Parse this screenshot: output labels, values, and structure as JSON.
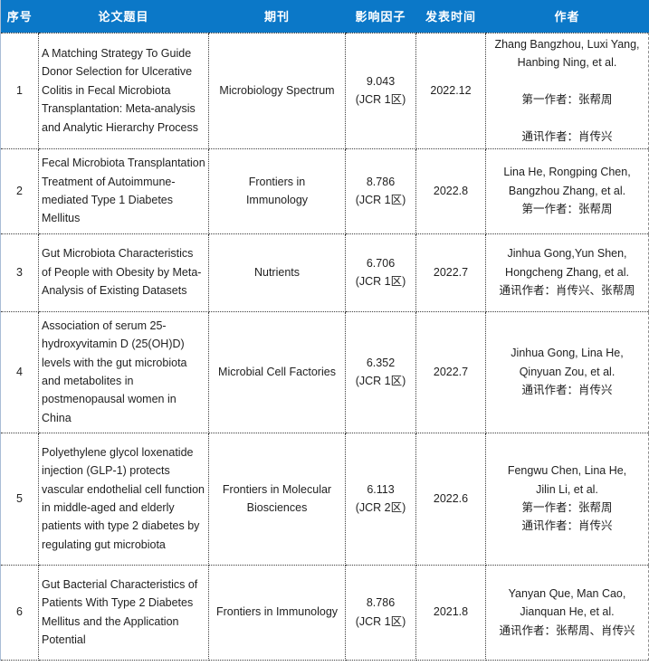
{
  "table": {
    "header_bg": "#0b78c8",
    "header_text_color": "#ffffff",
    "columns": [
      {
        "key": "index",
        "label": "序号"
      },
      {
        "key": "title",
        "label": "论文题目"
      },
      {
        "key": "journal",
        "label": "期刊"
      },
      {
        "key": "impact_factor",
        "label": "影响因子"
      },
      {
        "key": "publish_date",
        "label": "发表时间"
      },
      {
        "key": "authors",
        "label": "作者"
      }
    ],
    "rows": [
      {
        "index": "1",
        "title": "A Matching Strategy To Guide Donor Selection for Ulcerative Colitis in Fecal Microbiota Transplantation: Meta-analysis and Analytic Hierarchy Process",
        "journal": "Microbiology Spectrum",
        "impact_factor": "9.043\n(JCR 1区)",
        "publish_date": "2022.12",
        "authors": "Zhang Bangzhou, Luxi Yang,\nHanbing Ning, et al.\n\n第一作者：张帮周\n\n通讯作者：肖传兴"
      },
      {
        "index": "2",
        "title": "Fecal Microbiota Transplantation Treatment of Autoimmune-mediated Type 1 Diabetes Mellitus",
        "journal": "Frontiers in\nImmunology",
        "impact_factor": "8.786\n(JCR 1区)",
        "publish_date": "2022.8",
        "authors": "Lina He, Rongping Chen,\nBangzhou Zhang, et al.\n第一作者：张帮周"
      },
      {
        "index": "3",
        "title": "Gut Microbiota Characteristics of People with Obesity by Meta-Analysis of Existing Datasets",
        "journal": "Nutrients",
        "impact_factor": "6.706\n(JCR 1区)",
        "publish_date": "2022.7",
        "authors": "Jinhua Gong,Yun Shen,\nHongcheng Zhang, et al.\n通讯作者：肖传兴、张帮周"
      },
      {
        "index": "4",
        "title": "Association of serum 25-hydroxyvitamin D (25(OH)D) levels with the gut microbiota and metabolites in postmenopausal women in China",
        "journal": "Microbial Cell Factories",
        "impact_factor": "6.352\n(JCR 1区)",
        "publish_date": "2022.7",
        "authors": "Jinhua Gong, Lina He,\nQinyuan Zou, et al.\n通讯作者：肖传兴"
      },
      {
        "index": "5",
        "title": "Polyethylene glycol loxenatide injection (GLP-1) protects vascular endothelial cell function in middle-aged and elderly patients with type 2 diabetes by regulating gut microbiota",
        "journal": "Frontiers in Molecular\nBiosciences",
        "impact_factor": "6.113\n(JCR 2区)",
        "publish_date": "2022.6",
        "authors": "Fengwu Chen, Lina He,\nJilin Li, et al.\n第一作者：张帮周\n通讯作者：肖传兴"
      },
      {
        "index": "6",
        "title": "Gut Bacterial Characteristics of Patients With Type 2 Diabetes Mellitus and the Application Potential",
        "journal": "Frontiers in Immunology",
        "impact_factor": "8.786\n(JCR 1区)",
        "publish_date": "2021.8",
        "authors": "Yanyan Que, Man Cao,\nJianquan He, et al.\n通讯作者：张帮周、肖传兴"
      }
    ]
  }
}
